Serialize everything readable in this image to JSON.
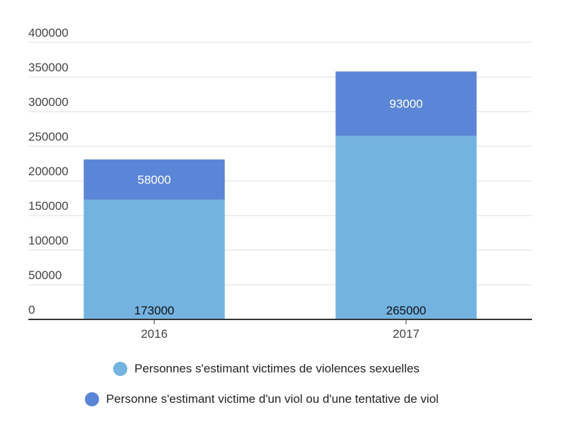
{
  "chart_data": {
    "type": "bar",
    "stacked": true,
    "categories": [
      "2016",
      "2017"
    ],
    "series": [
      {
        "name": "Personnes s'estimant victimes de violences sexuelles",
        "values": [
          173000,
          265000
        ],
        "labels": [
          "173000",
          "265000"
        ],
        "color": "#74b3e0",
        "label_color": "#111111"
      },
      {
        "name": "Personne s'estimant victime d'un viol ou d'une tentative de viol",
        "values": [
          58000,
          93000
        ],
        "labels": [
          "58000",
          "93000"
        ],
        "color": "#5b85d6",
        "label_color": "#ffffff"
      }
    ],
    "y_ticks": [
      "0",
      "50000",
      "100000",
      "150000",
      "200000",
      "250000",
      "300000",
      "350000",
      "400000"
    ],
    "ylim": [
      0,
      400000
    ],
    "grid": true,
    "legend_position": "bottom"
  }
}
